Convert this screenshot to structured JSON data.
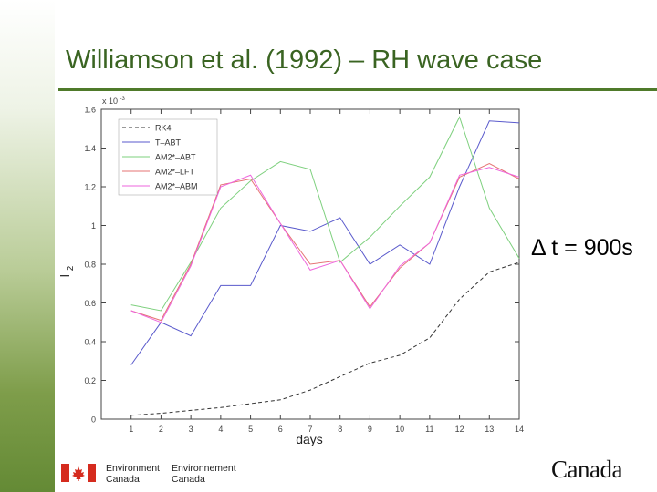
{
  "slide": {
    "title": "Williamson et al. (1992) – RH wave case",
    "dt_label": "Δ t = 900s",
    "footer": {
      "env_en_line1": "Environment",
      "env_en_line2": "Canada",
      "env_fr_line1": "Environnement",
      "env_fr_line2": "Canada",
      "wordmark": "Canadа"
    }
  },
  "colors": {
    "title": "#3a6422",
    "rule": "#4f7a2a",
    "flag_red": "#d52b1e"
  },
  "chart_data": {
    "type": "line",
    "xlabel": "days",
    "ylabel": "l",
    "ylabel_sub": "2",
    "y_multiplier": "x 10",
    "y_multiplier_exp": "-3",
    "x": [
      1,
      2,
      3,
      4,
      5,
      6,
      7,
      8,
      9,
      10,
      11,
      12,
      13,
      14
    ],
    "xlim": [
      0,
      14
    ],
    "ylim": [
      0,
      1.6
    ],
    "yticks": [
      0,
      0.2,
      0.4,
      0.6,
      0.8,
      1,
      1.2,
      1.4,
      1.6
    ],
    "ytick_labels": [
      "0",
      "0.2",
      "0.4",
      "0.6",
      "0.8",
      "1",
      "1.2",
      "1.4",
      "1.6"
    ],
    "xticks": [
      1,
      2,
      3,
      4,
      5,
      6,
      7,
      8,
      9,
      10,
      11,
      12,
      13,
      14
    ],
    "xtick_labels": [
      "1",
      "2",
      "3",
      "4",
      "5",
      "6",
      "7",
      "8",
      "9",
      "10",
      "11",
      "12",
      "13",
      "14"
    ],
    "grid": false,
    "legend_position": "top-left",
    "series": [
      {
        "name": "RK4",
        "color": "#333333",
        "dash": "4,3",
        "values": [
          0.02,
          0.03,
          0.045,
          0.06,
          0.08,
          0.1,
          0.15,
          0.22,
          0.29,
          0.33,
          0.42,
          0.62,
          0.76,
          0.81
        ]
      },
      {
        "name": "T–ABT",
        "color": "#5a5acc",
        "dash": "",
        "values": [
          0.28,
          0.5,
          0.43,
          0.69,
          0.69,
          1.0,
          0.97,
          1.04,
          0.8,
          0.9,
          0.8,
          1.2,
          1.54,
          1.53
        ]
      },
      {
        "name": "AM2*–ABT",
        "color": "#7ed07e",
        "dash": "",
        "values": [
          0.59,
          0.56,
          0.81,
          1.09,
          1.23,
          1.33,
          1.29,
          0.81,
          0.94,
          1.1,
          1.25,
          1.56,
          1.09,
          0.83
        ]
      },
      {
        "name": "AM2*–LFT",
        "color": "#e57373",
        "dash": "",
        "values": [
          0.56,
          0.51,
          0.8,
          1.21,
          1.24,
          1.01,
          0.8,
          0.82,
          0.58,
          0.78,
          0.91,
          1.25,
          1.32,
          1.24
        ]
      },
      {
        "name": "AM2*–ABM",
        "color": "#ee66dd",
        "dash": "",
        "values": [
          0.56,
          0.5,
          0.79,
          1.2,
          1.26,
          1.01,
          0.77,
          0.82,
          0.57,
          0.79,
          0.91,
          1.26,
          1.3,
          1.25
        ]
      }
    ]
  }
}
